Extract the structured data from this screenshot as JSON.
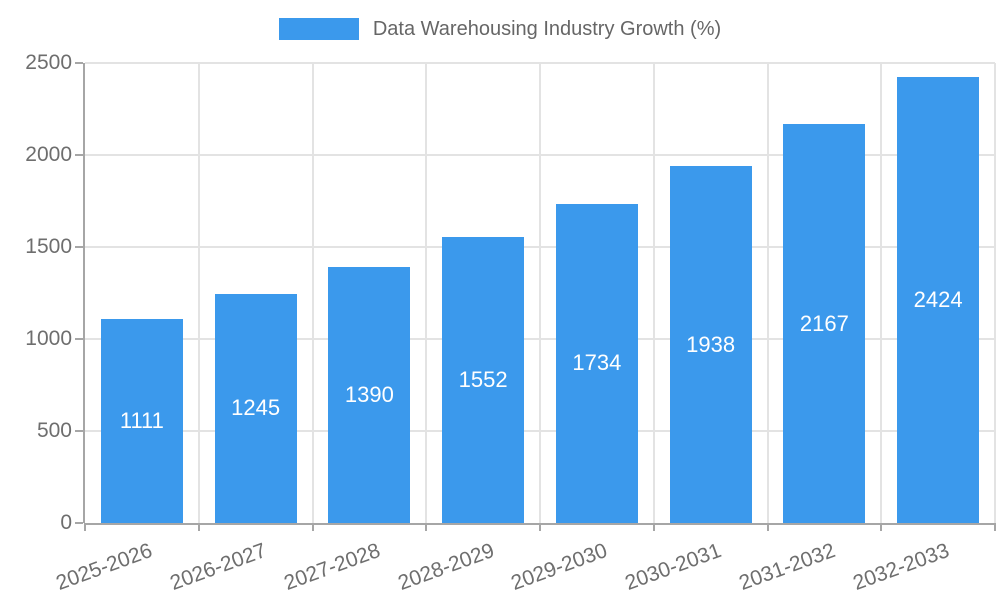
{
  "legend": {
    "label": "Data Warehousing Industry Growth (%)"
  },
  "chart_data": {
    "type": "bar",
    "title": "Data Warehousing Industry Growth (%)",
    "categories": [
      "2025-2026",
      "2026-2027",
      "2027-2028",
      "2028-2029",
      "2029-2030",
      "2030-2031",
      "2031-2032",
      "2032-2033"
    ],
    "values": [
      1111,
      1245,
      1390,
      1552,
      1734,
      1938,
      2167,
      2424
    ],
    "xlabel": "",
    "ylabel": "",
    "ylim": [
      0,
      2500
    ],
    "yticks": [
      0,
      500,
      1000,
      1500,
      2000,
      2500
    ],
    "grid": true,
    "legend_position": "top-center",
    "x_label_rotation_deg": -20,
    "colors": {
      "bar": "#3B99EC",
      "value_label": "#FFFFFF",
      "axis_line": "#A6A6A6",
      "grid_line": "#E3E3E3",
      "tick_label": "#6E6E6E",
      "legend_text": "#666666",
      "background": "#FFFFFF"
    }
  }
}
